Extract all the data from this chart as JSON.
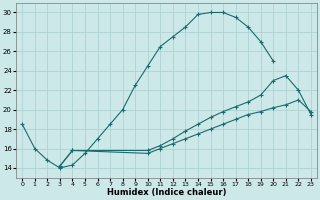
{
  "xlabel": "Humidex (Indice chaleur)",
  "xlim": [
    -0.5,
    23.5
  ],
  "ylim": [
    13,
    31
  ],
  "xticks": [
    0,
    1,
    2,
    3,
    4,
    5,
    6,
    7,
    8,
    9,
    10,
    11,
    12,
    13,
    14,
    15,
    16,
    17,
    18,
    19,
    20,
    21,
    22,
    23
  ],
  "yticks": [
    14,
    16,
    18,
    20,
    22,
    24,
    26,
    28,
    30
  ],
  "background_color": "#cce8e8",
  "grid_color": "#aacece",
  "line_color": "#1a6b6b",
  "line1_x": [
    0,
    1,
    2,
    3,
    4,
    5,
    6,
    7,
    8,
    9,
    10,
    11,
    12,
    13,
    14,
    15,
    16,
    17,
    18,
    19,
    20
  ],
  "line1_y": [
    18.5,
    16.0,
    14.8,
    14.0,
    14.3,
    15.5,
    17.0,
    18.5,
    20.0,
    22.5,
    24.5,
    26.5,
    27.5,
    28.5,
    29.8,
    30.0,
    30.0,
    29.5,
    28.5,
    27.0,
    25.0
  ],
  "line2_x": [
    3,
    4,
    10,
    11,
    12,
    13,
    14,
    15,
    16,
    17,
    18,
    19,
    20,
    21,
    22,
    23
  ],
  "line2_y": [
    14.2,
    15.8,
    15.8,
    16.3,
    17.0,
    17.8,
    18.5,
    19.2,
    19.8,
    20.3,
    20.8,
    21.5,
    23.0,
    23.5,
    22.0,
    19.5
  ],
  "line3_x": [
    3,
    4,
    10,
    11,
    12,
    13,
    14,
    15,
    16,
    17,
    18,
    19,
    20,
    21,
    22,
    23
  ],
  "line3_y": [
    14.2,
    15.8,
    15.5,
    16.0,
    16.5,
    17.0,
    17.5,
    18.0,
    18.5,
    19.0,
    19.5,
    19.8,
    20.2,
    20.5,
    21.0,
    19.8
  ]
}
